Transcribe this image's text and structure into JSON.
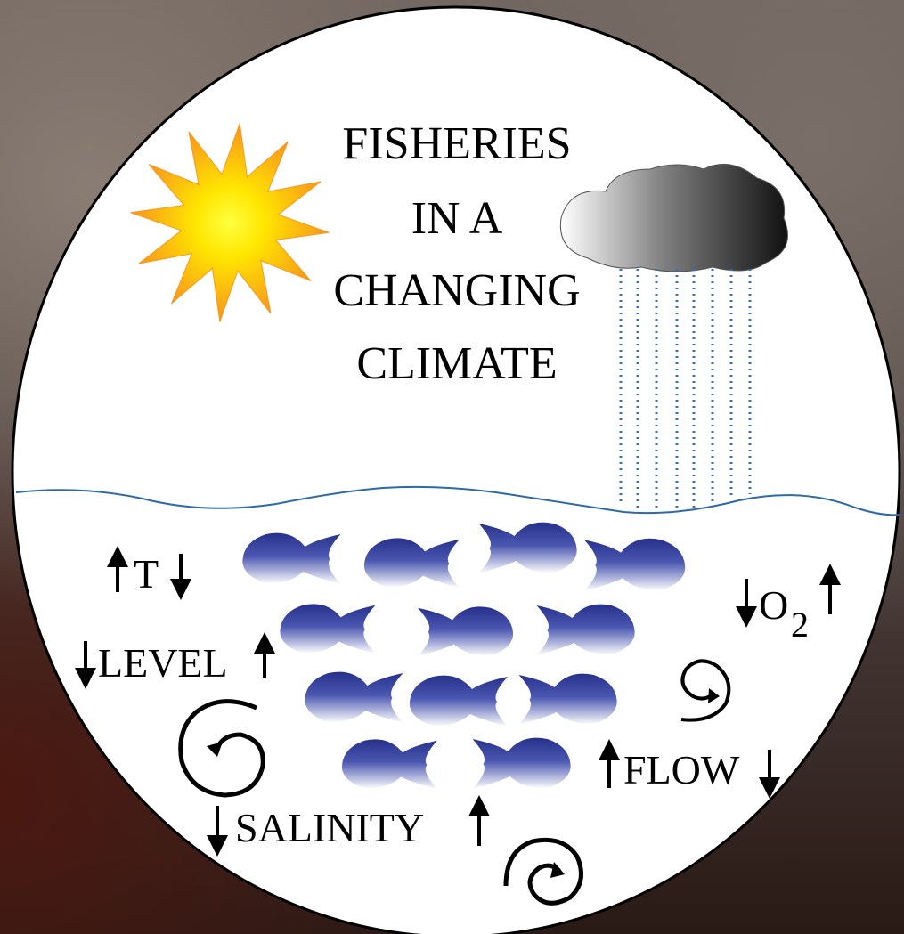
{
  "title_lines": [
    "FISHERIES",
    "IN A",
    "CHANGING",
    "CLIMATE"
  ],
  "labels": {
    "temperature": "T",
    "level": "LEVEL",
    "oxygen": "O",
    "oxygen_subscript": "2",
    "flow": "FLOW",
    "salinity": "SALINITY"
  },
  "colors": {
    "sun_outer": "#f7941d",
    "sun_inner": "#ffeb00",
    "cloud_dark": "#1a1a1a",
    "cloud_light": "#ffffff",
    "rain": "#3a6fb0",
    "water_line": "#2e6aa8",
    "fish_top": "#2a3590",
    "fish_bottom": "#ffffff"
  },
  "icons": [
    "sun-icon",
    "cloud-icon",
    "rain-icon",
    "fish-icon",
    "whirlpool-icon",
    "arrow-up-icon",
    "arrow-down-icon"
  ]
}
